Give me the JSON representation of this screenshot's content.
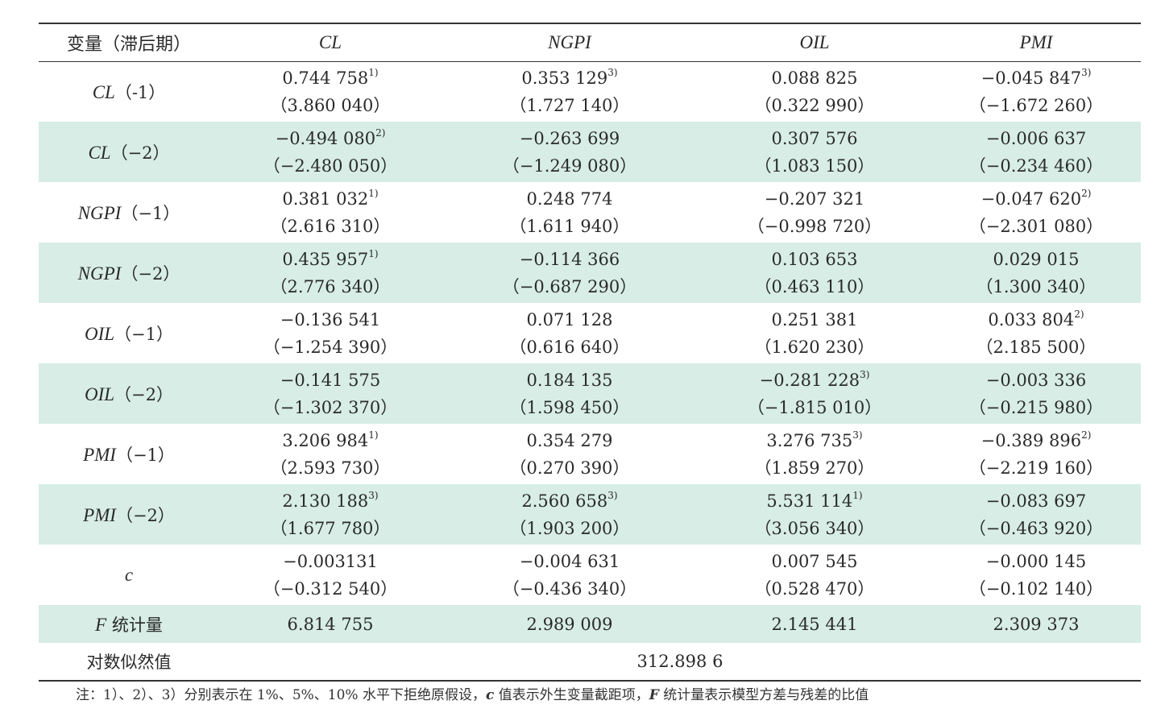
{
  "header": {
    "first": "变量（滞后期）",
    "columns": [
      "CL",
      "NGPI",
      "OIL",
      "PMI"
    ]
  },
  "rows": [
    {
      "var": "CL",
      "lag": "（-1）",
      "shade": false,
      "cells": [
        {
          "coef": "0.744 758",
          "sig": "1)",
          "t": "（3.860 040）"
        },
        {
          "coef": "0.353 129",
          "sig": "3)",
          "t": "（1.727 140）"
        },
        {
          "coef": "0.088 825",
          "sig": "",
          "t": "（0.322 990）"
        },
        {
          "coef": "−0.045 847",
          "sig": "3)",
          "t": "（−1.672 260）"
        }
      ]
    },
    {
      "var": "CL",
      "lag": "（−2）",
      "shade": true,
      "cells": [
        {
          "coef": "−0.494 080",
          "sig": "2)",
          "t": "（−2.480 050）"
        },
        {
          "coef": "−0.263 699",
          "sig": "",
          "t": "（−1.249 080）"
        },
        {
          "coef": "0.307 576",
          "sig": "",
          "t": "（1.083 150）"
        },
        {
          "coef": "−0.006 637",
          "sig": "",
          "t": "（−0.234 460）"
        }
      ]
    },
    {
      "var": "NGPI",
      "lag": "（−1）",
      "shade": false,
      "cells": [
        {
          "coef": "0.381 032",
          "sig": "1)",
          "t": "（2.616 310）"
        },
        {
          "coef": "0.248 774",
          "sig": "",
          "t": "（1.611 940）"
        },
        {
          "coef": "−0.207 321",
          "sig": "",
          "t": "（−0.998 720）"
        },
        {
          "coef": "−0.047 620",
          "sig": "2)",
          "t": "（−2.301 080）"
        }
      ]
    },
    {
      "var": "NGPI",
      "lag": "（−2）",
      "shade": true,
      "cells": [
        {
          "coef": "0.435 957",
          "sig": "1)",
          "t": "（2.776 340）"
        },
        {
          "coef": "−0.114 366",
          "sig": "",
          "t": "（−0.687 290）"
        },
        {
          "coef": "0.103 653",
          "sig": "",
          "t": "（0.463 110）"
        },
        {
          "coef": "0.029 015",
          "sig": "",
          "t": "（1.300 340）"
        }
      ]
    },
    {
      "var": "OIL",
      "lag": "（−1）",
      "shade": false,
      "cells": [
        {
          "coef": "−0.136 541",
          "sig": "",
          "t": "（−1.254 390）"
        },
        {
          "coef": "0.071 128",
          "sig": "",
          "t": "（0.616 640）"
        },
        {
          "coef": "0.251 381",
          "sig": "",
          "t": "（1.620 230）"
        },
        {
          "coef": "0.033 804",
          "sig": "2)",
          "t": "（2.185 500）"
        }
      ]
    },
    {
      "var": "OIL",
      "lag": "（−2）",
      "shade": true,
      "cells": [
        {
          "coef": "−0.141 575",
          "sig": "",
          "t": "（−1.302 370）"
        },
        {
          "coef": "0.184 135",
          "sig": "",
          "t": "（1.598 450）"
        },
        {
          "coef": "−0.281 228",
          "sig": "3)",
          "t": "（−1.815 010）"
        },
        {
          "coef": "−0.003 336",
          "sig": "",
          "t": "（−0.215 980）"
        }
      ]
    },
    {
      "var": "PMI",
      "lag": "（−1）",
      "shade": false,
      "cells": [
        {
          "coef": "3.206 984",
          "sig": "1)",
          "t": "（2.593 730）"
        },
        {
          "coef": "0.354 279",
          "sig": "",
          "t": "（0.270 390）"
        },
        {
          "coef": "3.276 735",
          "sig": "3)",
          "t": "（1.859 270）"
        },
        {
          "coef": "−0.389 896",
          "sig": "2)",
          "t": "（−2.219 160）"
        }
      ]
    },
    {
      "var": "PMI",
      "lag": "（−2）",
      "shade": true,
      "cells": [
        {
          "coef": "2.130 188",
          "sig": "3)",
          "t": "（1.677 780）"
        },
        {
          "coef": "2.560 658",
          "sig": "3)",
          "t": "（1.903 200）"
        },
        {
          "coef": "5.531 114",
          "sig": "1)",
          "t": "（3.056 340）"
        },
        {
          "coef": "−0.083 697",
          "sig": "",
          "t": "（−0.463 920）"
        }
      ]
    },
    {
      "var": "c",
      "lag": "",
      "shade": false,
      "cells": [
        {
          "coef": "−0.003131",
          "sig": "",
          "t": "（−0.312 540）"
        },
        {
          "coef": "−0.004 631",
          "sig": "",
          "t": "（−0.436 340）"
        },
        {
          "coef": "0.007 545",
          "sig": "",
          "t": "（0.528 470）"
        },
        {
          "coef": "−0.000 145",
          "sig": "",
          "t": "（−0.102 140）"
        }
      ]
    }
  ],
  "fstat": {
    "var": "F",
    "label": " 统计量",
    "values": [
      "6.814 755",
      "2.989 009",
      "2.145 441",
      "2.309 373"
    ]
  },
  "loglik": {
    "label": "对数似然值",
    "value": "312.898 6"
  },
  "note": {
    "p1": "注：1）、2）、3）分别表示在 1%、5%、10% 水平下拒绝原假设，",
    "it1": "c",
    "p2": " 值表示外生变量截距项，",
    "it2": "F",
    "p3": " 统计量表示模型方差与残差的比值"
  },
  "colors": {
    "shade": "#d7ede6",
    "rule": "#333333"
  }
}
